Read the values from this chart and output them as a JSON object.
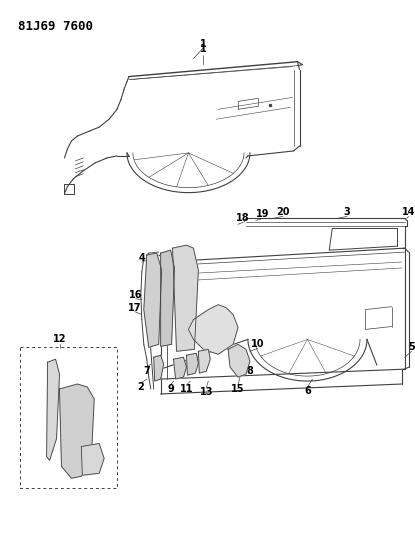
{
  "bg_color": "#ffffff",
  "header_text": "81J69 7600",
  "line_color": "#404040",
  "label_color": "#000000",
  "fig_width": 4.15,
  "fig_height": 5.33,
  "dpi": 100,
  "header_fontsize": 9,
  "label_fontsize": 6.5
}
